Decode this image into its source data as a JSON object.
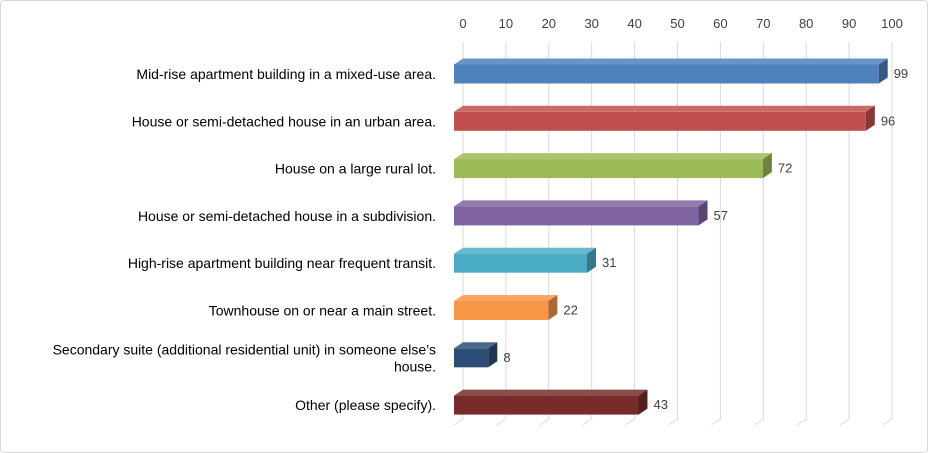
{
  "chart_data": {
    "type": "bar",
    "orientation": "horizontal",
    "style": "3d",
    "categories": [
      "Mid-rise apartment building in a mixed-use area.",
      "House or semi-detached house in an urban area.",
      "House on a large rural lot.",
      "House or semi-detached house in a subdivision.",
      "High-rise apartment building near frequent transit.",
      "Townhouse on or near a main street.",
      "Secondary suite (additional residential unit) in someone else’s house.",
      "Other (please specify)."
    ],
    "category_label_lines": [
      [
        "Mid-rise apartment building in a mixed-use area."
      ],
      [
        "House or semi-detached house in an urban area."
      ],
      [
        "House on a large rural lot."
      ],
      [
        "House or semi-detached house in a subdivision."
      ],
      [
        "High-rise apartment building near frequent transit."
      ],
      [
        "Townhouse on or near a main street."
      ],
      [
        "Secondary suite (additional residential unit) in someone else’s",
        "house."
      ],
      [
        "Other (please specify)."
      ]
    ],
    "values": [
      99,
      96,
      72,
      57,
      31,
      22,
      8,
      43
    ],
    "colors": [
      "#4f81bd",
      "#c0504d",
      "#9bbb59",
      "#8064a2",
      "#4bacc6",
      "#f79646",
      "#2c4d75",
      "#772c2a"
    ],
    "xlim": [
      0,
      100
    ],
    "xticks": [
      0,
      10,
      20,
      30,
      40,
      50,
      60,
      70,
      80,
      90,
      100
    ],
    "axis_position": "top",
    "grid": true,
    "data_labels": true,
    "legend": "none",
    "title": "",
    "xlabel": "",
    "ylabel": ""
  }
}
